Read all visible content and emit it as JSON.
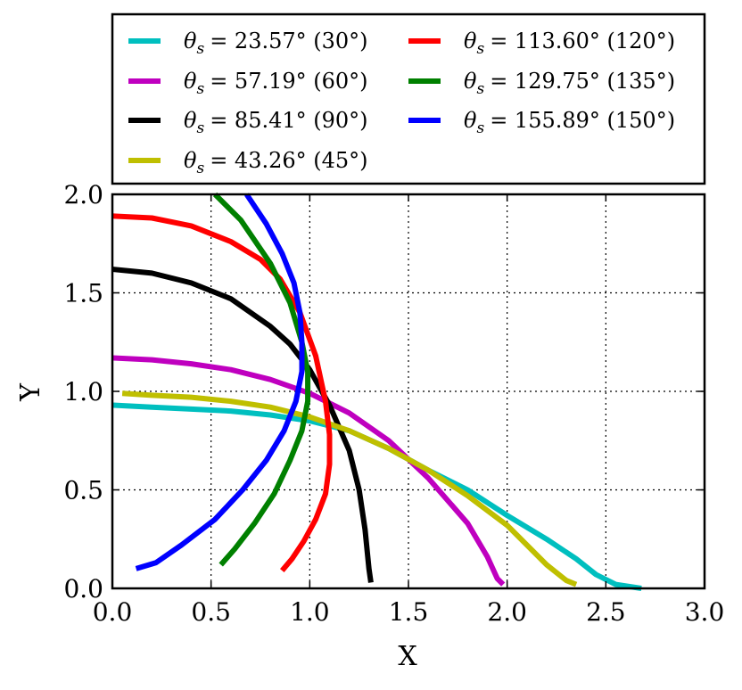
{
  "chart_data": {
    "type": "line",
    "title": "",
    "xlabel": "X",
    "ylabel": "Y",
    "xlim": [
      0.0,
      3.0
    ],
    "ylim": [
      0.0,
      2.0
    ],
    "xticks": [
      "0.0",
      "0.5",
      "1.0",
      "1.5",
      "2.0",
      "2.5",
      "3.0"
    ],
    "yticks": [
      "0.0",
      "0.5",
      "1.0",
      "1.5",
      "2.0"
    ],
    "grid": true,
    "legend_position": "top",
    "series": [
      {
        "name": "θs = 23.57° (30°)",
        "sub": "s",
        "value": "= 23.57° (30°)",
        "color": "#00BFBF",
        "x": [
          0.0,
          0.2,
          0.4,
          0.6,
          0.8,
          1.0,
          1.2,
          1.4,
          1.6,
          1.8,
          2.0,
          2.2,
          2.35,
          2.45,
          2.55,
          2.68
        ],
        "y": [
          0.93,
          0.92,
          0.91,
          0.9,
          0.88,
          0.85,
          0.8,
          0.71,
          0.6,
          0.5,
          0.37,
          0.25,
          0.15,
          0.07,
          0.02,
          0.0
        ]
      },
      {
        "name": "θs = 57.19° (60°)",
        "sub": "s",
        "value": "= 57.19° (60°)",
        "color": "#BF00BF",
        "x": [
          0.0,
          0.2,
          0.4,
          0.6,
          0.8,
          1.0,
          1.2,
          1.4,
          1.6,
          1.8,
          1.9,
          1.95,
          1.98
        ],
        "y": [
          1.17,
          1.16,
          1.14,
          1.11,
          1.06,
          0.99,
          0.89,
          0.75,
          0.56,
          0.33,
          0.16,
          0.05,
          0.02
        ]
      },
      {
        "name": "θs = 85.41° (90°)",
        "sub": "s",
        "value": "= 85.41° (90°)",
        "color": "#000000",
        "x": [
          0.0,
          0.2,
          0.4,
          0.6,
          0.8,
          0.9,
          1.0,
          1.1,
          1.2,
          1.25,
          1.28,
          1.3,
          1.31
        ],
        "y": [
          1.62,
          1.6,
          1.55,
          1.47,
          1.33,
          1.24,
          1.11,
          0.93,
          0.7,
          0.5,
          0.3,
          0.1,
          0.03
        ]
      },
      {
        "name": "θs = 43.26° (45°)",
        "sub": "s",
        "value": "= 43.26° (45°)",
        "color": "#BFBF00",
        "x": [
          0.05,
          0.2,
          0.4,
          0.6,
          0.8,
          1.0,
          1.2,
          1.4,
          1.6,
          1.8,
          2.0,
          2.1,
          2.2,
          2.3,
          2.35
        ],
        "y": [
          0.99,
          0.98,
          0.97,
          0.95,
          0.92,
          0.87,
          0.8,
          0.71,
          0.6,
          0.47,
          0.32,
          0.22,
          0.12,
          0.04,
          0.02
        ]
      },
      {
        "name": "θs = 113.60° (120°)",
        "sub": "s",
        "value": "= 113.60° (120°)",
        "color": "#FF0000",
        "x": [
          0.0,
          0.2,
          0.4,
          0.6,
          0.75,
          0.85,
          0.95,
          1.03,
          1.08,
          1.1,
          1.1,
          1.08,
          1.03,
          0.97,
          0.91,
          0.86
        ],
        "y": [
          1.89,
          1.88,
          1.84,
          1.76,
          1.67,
          1.57,
          1.4,
          1.18,
          0.95,
          0.78,
          0.63,
          0.48,
          0.35,
          0.24,
          0.15,
          0.09
        ]
      },
      {
        "name": "θs = 129.75° (135°)",
        "sub": "s",
        "value": "= 129.75° (135°)",
        "color": "#008000",
        "x": [
          0.52,
          0.65,
          0.8,
          0.9,
          0.96,
          0.99,
          0.99,
          0.96,
          0.9,
          0.82,
          0.72,
          0.62,
          0.55
        ],
        "y": [
          2.0,
          1.87,
          1.65,
          1.45,
          1.25,
          1.1,
          0.95,
          0.8,
          0.65,
          0.48,
          0.33,
          0.2,
          0.12
        ]
      },
      {
        "name": "θs = 155.89° (150°)",
        "sub": "s",
        "value": "= 155.89° (150°)",
        "color": "#0000FF",
        "x": [
          0.68,
          0.78,
          0.86,
          0.92,
          0.95,
          0.96,
          0.96,
          0.93,
          0.87,
          0.78,
          0.66,
          0.52,
          0.35,
          0.22,
          0.12
        ],
        "y": [
          2.0,
          1.85,
          1.7,
          1.55,
          1.4,
          1.25,
          1.1,
          0.95,
          0.8,
          0.65,
          0.5,
          0.35,
          0.22,
          0.13,
          0.1
        ]
      }
    ]
  }
}
